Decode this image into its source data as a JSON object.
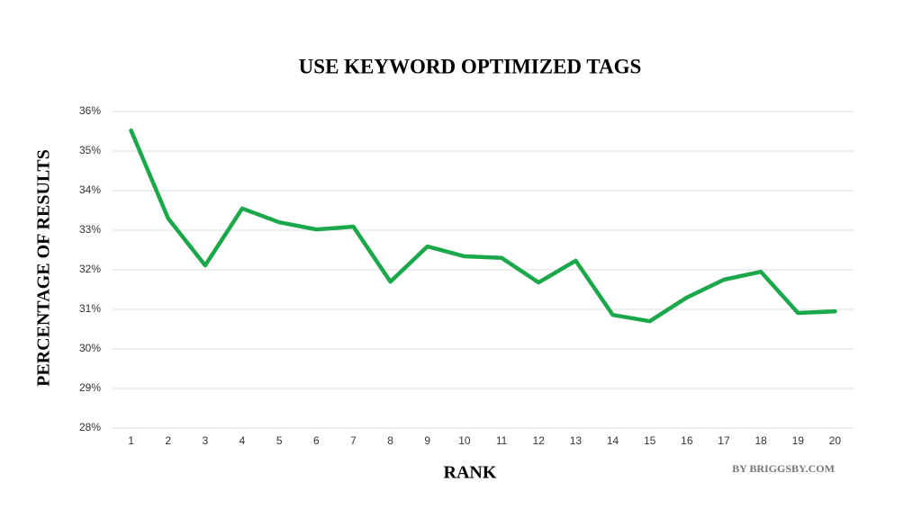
{
  "chart_data": {
    "type": "line",
    "title": "USE KEYWORD OPTIMIZED TAGS",
    "x_label": "RANK",
    "y_label": "PERCENTAGE OF RESULTS",
    "credit": "BY BRIGGSBY.COM",
    "categories": [
      "1",
      "2",
      "3",
      "4",
      "5",
      "6",
      "7",
      "8",
      "9",
      "10",
      "11",
      "12",
      "13",
      "14",
      "15",
      "16",
      "17",
      "18",
      "19",
      "20"
    ],
    "values": [
      35.52,
      33.3,
      32.11,
      33.55,
      33.2,
      33.02,
      33.09,
      31.7,
      32.59,
      32.34,
      32.3,
      31.68,
      32.23,
      30.86,
      30.7,
      31.3,
      31.75,
      31.95,
      30.91,
      30.95
    ],
    "color": "#1aa84a",
    "ylim": [
      28,
      36
    ],
    "yticks": [
      {
        "value": 28,
        "label": "28%"
      },
      {
        "value": 29,
        "label": "29%"
      },
      {
        "value": 30,
        "label": "30%"
      },
      {
        "value": 31,
        "label": "31%"
      },
      {
        "value": 32,
        "label": "32%"
      },
      {
        "value": 33,
        "label": "33%"
      },
      {
        "value": 34,
        "label": "34%"
      },
      {
        "value": 35,
        "label": "35%"
      },
      {
        "value": 36,
        "label": "36%"
      }
    ],
    "grid": true
  }
}
